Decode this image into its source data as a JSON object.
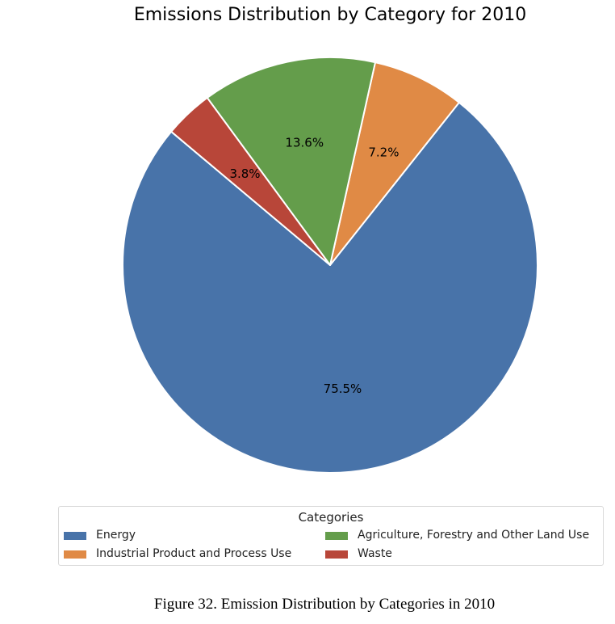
{
  "chart_data": {
    "type": "pie",
    "title": "Emissions Distribution by Category for 2010",
    "categories": [
      "Energy",
      "Industrial Product and Process Use",
      "Agriculture, Forestry and Other Land Use",
      "Waste"
    ],
    "values": [
      75.5,
      7.2,
      13.6,
      3.8
    ],
    "value_labels": [
      "75.5%",
      "7.2%",
      "13.6%",
      "3.8%"
    ],
    "colors": [
      "#4873a9",
      "#e08a45",
      "#649d4b",
      "#b84639"
    ],
    "start_angle_deg": 140,
    "direction": "counterclockwise",
    "legend": {
      "title": "Categories",
      "placement": "bottom",
      "items": [
        "Energy",
        "Agriculture, Forestry and Other Land Use",
        "Industrial Product and Process Use",
        "Waste"
      ]
    }
  },
  "caption": "Figure 32.  Emission Distribution by Categories in 2010"
}
